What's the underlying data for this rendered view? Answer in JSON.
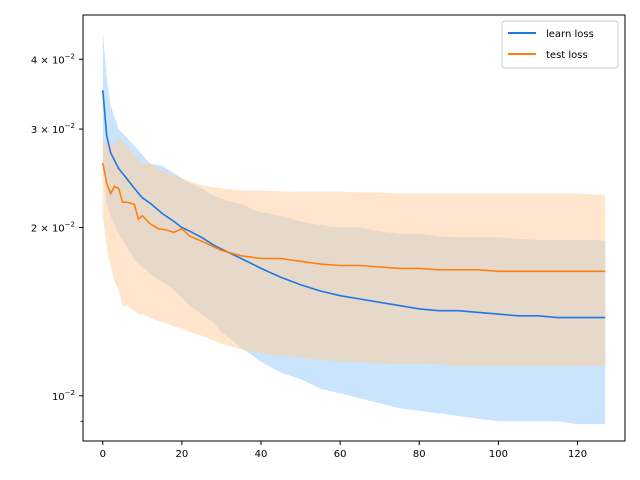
{
  "chart_data": {
    "type": "line",
    "title": "",
    "xlabel": "",
    "ylabel": "",
    "xlim": [
      -5,
      132
    ],
    "ylim": [
      0.0083,
      0.048
    ],
    "yscale": "log",
    "grid": false,
    "legend_position": "top-right",
    "x_ticks": [
      0,
      20,
      40,
      60,
      80,
      100,
      120
    ],
    "y_ticks": [
      {
        "value": 0.04,
        "mantissa": "4",
        "base": "10",
        "exp": "−2"
      },
      {
        "value": 0.03,
        "mantissa": "3",
        "base": "10",
        "exp": "−2"
      },
      {
        "value": 0.02,
        "mantissa": "2",
        "base": "10",
        "exp": "−2"
      },
      {
        "value": 0.01,
        "mantissa": "",
        "base": "10",
        "exp": "−2"
      }
    ],
    "y_minor_ticks": [
      0.009
    ],
    "series": [
      {
        "name": "learn loss",
        "color": "#1f77e4",
        "band_color": "#9ccdfa",
        "x": [
          0,
          1,
          2,
          4,
          6,
          8,
          10,
          12,
          15,
          18,
          20,
          22,
          25,
          28,
          30,
          35,
          40,
          45,
          50,
          55,
          60,
          65,
          70,
          75,
          80,
          85,
          90,
          95,
          100,
          105,
          110,
          115,
          120,
          125,
          127
        ],
        "mean": [
          0.0352,
          0.0292,
          0.0272,
          0.0255,
          0.0245,
          0.0235,
          0.0226,
          0.0221,
          0.0212,
          0.0205,
          0.02,
          0.0197,
          0.0192,
          0.0186,
          0.0183,
          0.0176,
          0.0169,
          0.0163,
          0.0158,
          0.0154,
          0.0151,
          0.0149,
          0.0147,
          0.0145,
          0.0143,
          0.0142,
          0.0142,
          0.0141,
          0.014,
          0.0139,
          0.0139,
          0.0138,
          0.0138,
          0.0138,
          0.0138
        ],
        "upper": [
          0.045,
          0.037,
          0.033,
          0.03,
          0.029,
          0.028,
          0.027,
          0.026,
          0.0258,
          0.025,
          0.0245,
          0.024,
          0.0235,
          0.0228,
          0.0225,
          0.022,
          0.0213,
          0.021,
          0.0205,
          0.0202,
          0.02,
          0.02,
          0.0197,
          0.0195,
          0.0195,
          0.0193,
          0.0192,
          0.0192,
          0.0192,
          0.0191,
          0.019,
          0.019,
          0.019,
          0.019,
          0.0189
        ],
        "lower": [
          0.027,
          0.022,
          0.021,
          0.0195,
          0.0185,
          0.0175,
          0.017,
          0.0165,
          0.016,
          0.0155,
          0.015,
          0.0145,
          0.014,
          0.0135,
          0.013,
          0.0122,
          0.0115,
          0.011,
          0.0107,
          0.0103,
          0.0101,
          0.0099,
          0.0097,
          0.0095,
          0.0094,
          0.0093,
          0.0092,
          0.0091,
          0.009,
          0.009,
          0.009,
          0.009,
          0.0089,
          0.0089,
          0.0089
        ]
      },
      {
        "name": "test loss",
        "color": "#ff7f0e",
        "band_color": "#ffcfa0",
        "x": [
          0,
          1,
          2,
          3,
          4,
          5,
          6,
          8,
          9,
          10,
          12,
          14,
          16,
          18,
          20,
          22,
          25,
          30,
          35,
          40,
          45,
          50,
          55,
          60,
          65,
          70,
          75,
          80,
          85,
          90,
          95,
          100,
          105,
          110,
          115,
          120,
          125,
          127
        ],
        "mean": [
          0.0261,
          0.024,
          0.023,
          0.0237,
          0.0235,
          0.0222,
          0.0222,
          0.022,
          0.0207,
          0.021,
          0.0203,
          0.0199,
          0.0198,
          0.0196,
          0.0199,
          0.0193,
          0.0189,
          0.0182,
          0.0178,
          0.0176,
          0.0176,
          0.0174,
          0.0172,
          0.0171,
          0.0171,
          0.017,
          0.0169,
          0.0169,
          0.0168,
          0.0168,
          0.0168,
          0.0167,
          0.0167,
          0.0167,
          0.0167,
          0.0167,
          0.0167,
          0.0167
        ],
        "upper": [
          0.029,
          0.028,
          0.0285,
          0.028,
          0.029,
          0.0285,
          0.028,
          0.027,
          0.0265,
          0.026,
          0.026,
          0.0255,
          0.025,
          0.0248,
          0.0245,
          0.0242,
          0.0238,
          0.0235,
          0.0233,
          0.0233,
          0.0232,
          0.0232,
          0.0232,
          0.0232,
          0.0231,
          0.0231,
          0.023,
          0.023,
          0.023,
          0.023,
          0.023,
          0.023,
          0.023,
          0.023,
          0.023,
          0.023,
          0.0229,
          0.0228
        ],
        "lower": [
          0.021,
          0.0185,
          0.017,
          0.016,
          0.0155,
          0.0145,
          0.0145,
          0.0142,
          0.014,
          0.014,
          0.0138,
          0.0136,
          0.0135,
          0.0133,
          0.0132,
          0.013,
          0.0128,
          0.0124,
          0.0121,
          0.0119,
          0.0118,
          0.0117,
          0.0116,
          0.0115,
          0.0115,
          0.0114,
          0.0114,
          0.0114,
          0.0114,
          0.0113,
          0.0113,
          0.0113,
          0.0113,
          0.0113,
          0.0113,
          0.0113,
          0.0113,
          0.0113
        ]
      }
    ]
  }
}
